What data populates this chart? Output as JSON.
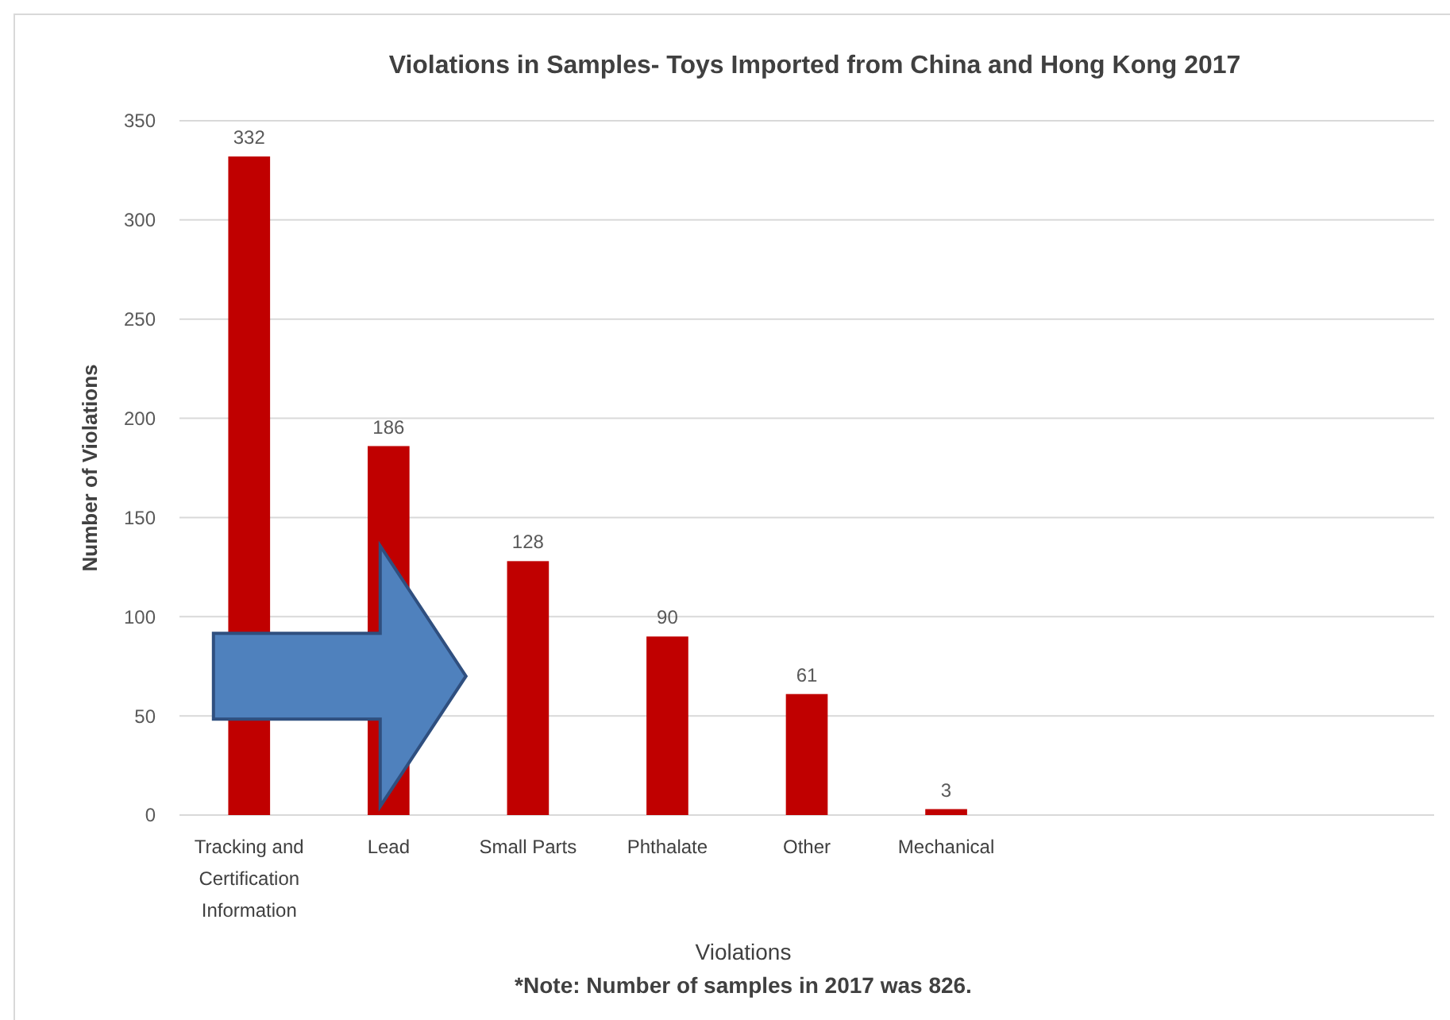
{
  "chart_data": {
    "type": "bar",
    "title": "Violations in Samples- Toys Imported from China and Hong Kong 2017",
    "xlabel": "Violations",
    "ylabel": "Number of Violations",
    "annotations": [
      "*Note: Number of samples in 2017 was 826."
    ],
    "categories": [
      "Tracking and Certification Information",
      "Lead",
      "Small Parts",
      "Phthalate",
      "Other",
      "Mechanical",
      null,
      null,
      null
    ],
    "values": [
      332,
      186,
      128,
      90,
      61,
      3,
      null,
      null,
      null
    ],
    "color": "#c00000",
    "ylim": [
      0,
      350
    ],
    "yticks": [
      0,
      50,
      100,
      150,
      200,
      250,
      300,
      350
    ],
    "grid": "y",
    "data_labels": true
  }
}
